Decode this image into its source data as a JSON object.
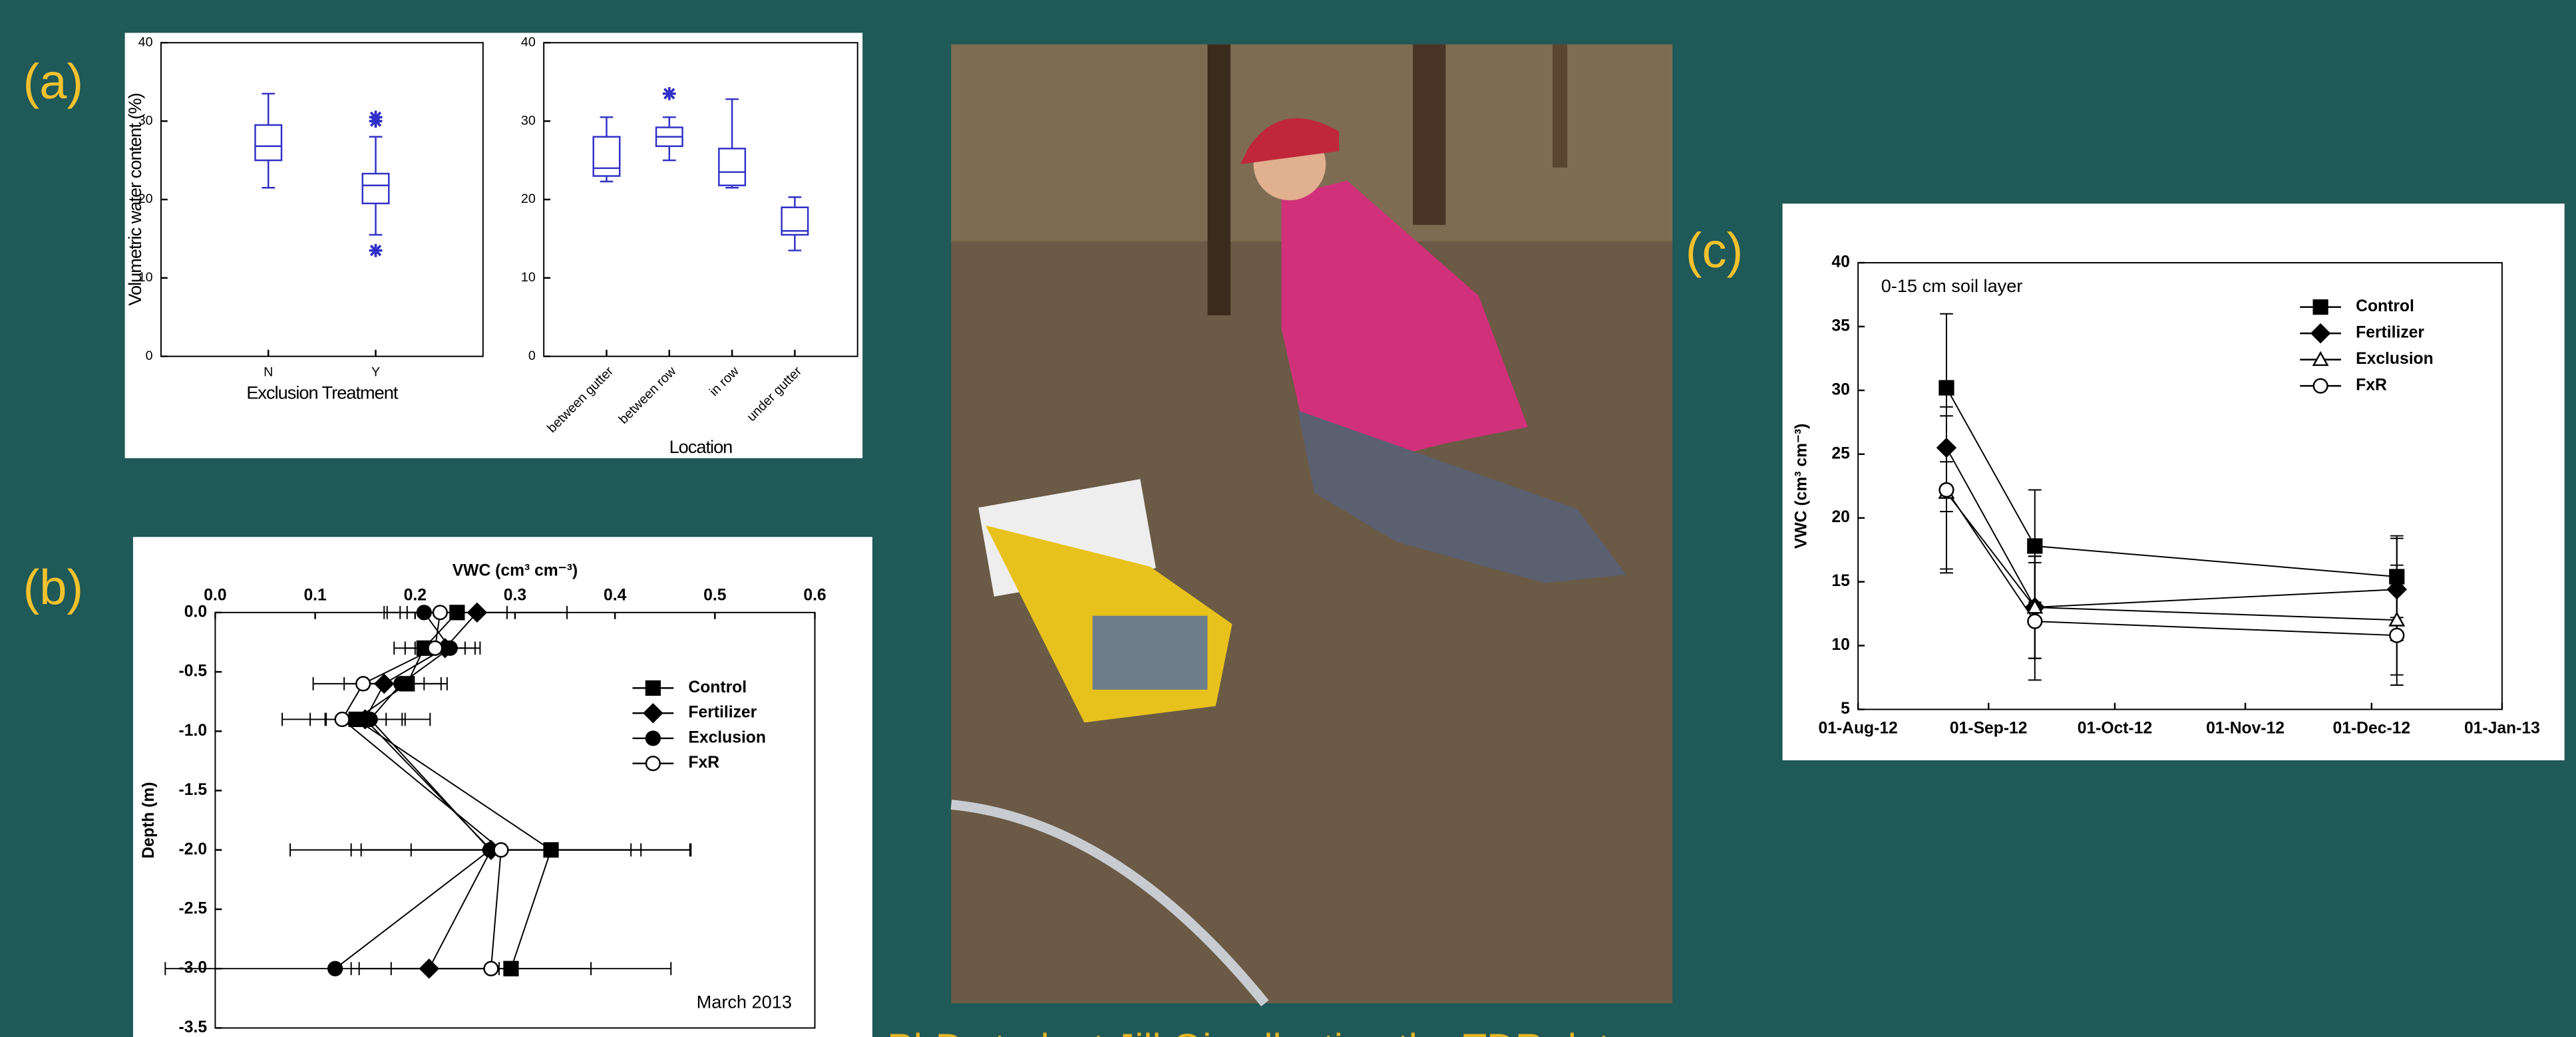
{
  "panel_labels": [
    "(a)",
    "(b)",
    "(c)"
  ],
  "caption": "PhD student Jill Qi collecting the TDR data",
  "chart_data": [
    {
      "type": "box",
      "ylabel": "Volumetric water content (%)",
      "xlabel": "Exclusion Treatment",
      "color": "#3030c8",
      "categories": [
        "N",
        "Y"
      ],
      "ylim": [
        0,
        40
      ],
      "yticks": [
        0,
        10,
        20,
        30,
        40
      ],
      "whisker_low": [
        21.5,
        15.5
      ],
      "q1": [
        25,
        19.5
      ],
      "median": [
        26.8,
        21.8
      ],
      "q3": [
        29.5,
        23.3
      ],
      "whisker_high": [
        33.5,
        28
      ],
      "outliers": [
        [],
        [
          30.5,
          30,
          13.5
        ]
      ]
    },
    {
      "type": "box",
      "xlabel": "Location",
      "color": "#3030c8",
      "categories": [
        "between gutter",
        "between row",
        "in row",
        "under gutter"
      ],
      "ylim": [
        0,
        40
      ],
      "yticks": [
        0,
        10,
        20,
        30,
        40
      ],
      "whisker_low": [
        22.3,
        25,
        21.5,
        13.5
      ],
      "q1": [
        23,
        26.8,
        21.8,
        15.5
      ],
      "median": [
        24,
        28,
        23.5,
        16
      ],
      "q3": [
        28,
        29.2,
        26.5,
        19
      ],
      "whisker_high": [
        30.5,
        30.5,
        32.8,
        20.3
      ],
      "outliers": [
        [],
        [
          33.5
        ],
        [],
        []
      ]
    },
    {
      "type": "profile",
      "xlabel": "VWC (cm³ cm⁻³)",
      "ylabel": "Depth (m)",
      "annotation": "March 2013",
      "xlim": [
        0,
        0.6
      ],
      "xticks": [
        {
          "value": 0,
          "label": "0.0"
        },
        0.1,
        0.2,
        0.3,
        0.4,
        0.5,
        0.6
      ],
      "ylim": [
        -3.5,
        0
      ],
      "yticks": [
        {
          "value": 0,
          "label": "0.0"
        },
        -0.5,
        {
          "value": -1,
          "label": "-1.0"
        },
        -1.5,
        {
          "value": -2,
          "label": "-2.0"
        },
        -2.5,
        {
          "value": -3,
          "label": "-3.0"
        },
        -3.5
      ],
      "depths": [
        0,
        -0.3,
        -0.6,
        -0.9,
        -2,
        -3
      ],
      "series": [
        {
          "name": "Control",
          "color": "#000000",
          "marker": "square",
          "values": [
            0.242,
            0.209,
            0.192,
            0.141,
            0.336,
            0.296
          ],
          "errors": [
            0.05,
            0.03,
            0.04,
            0.03,
            0.14,
            0.16
          ]
        },
        {
          "name": "Fertilizer",
          "color": "#000000",
          "marker": "diamond",
          "values": [
            0.262,
            0.23,
            0.169,
            0.15,
            0.276,
            0.214
          ],
          "errors": [
            0.09,
            0.03,
            0.04,
            0.04,
            0.14,
            0.07
          ]
        },
        {
          "name": "Exclusion",
          "color": "#000000",
          "marker": "circle",
          "values": [
            0.209,
            0.235,
            0.186,
            0.155,
            0.275,
            0.12
          ],
          "errors": [
            0.04,
            0.03,
            0.04,
            0.06,
            0.2,
            0.17
          ]
        },
        {
          "name": "FxR",
          "color": "#000000",
          "marker": "circle-open",
          "values": [
            0.225,
            0.22,
            0.148,
            0.127,
            0.286,
            0.276
          ],
          "errors": [
            0.04,
            0.03,
            0.05,
            0.06,
            0.14,
            0.1
          ]
        }
      ]
    },
    {
      "type": "line",
      "ylabel": "VWC (cm³ cm⁻³)",
      "annotation": "0-15 cm soil layer",
      "x": [
        "2012-08-22",
        "2012-09-12",
        "2012-12-07"
      ],
      "xlim": [
        "2012-08-01",
        "2013-01-01"
      ],
      "xticks": [
        {
          "value": "2012-08-01",
          "label": "01-Aug-12"
        },
        {
          "value": "2012-09-01",
          "label": "01-Sep-12"
        },
        {
          "value": "2012-10-01",
          "label": "01-Oct-12"
        },
        {
          "value": "2012-11-01",
          "label": "01-Nov-12"
        },
        {
          "value": "2012-12-01",
          "label": "01-Dec-12"
        },
        {
          "value": "2013-01-01",
          "label": "01-Jan-13"
        }
      ],
      "ylim": [
        5,
        40
      ],
      "yticks": [
        5,
        10,
        15,
        20,
        25,
        30,
        35,
        40
      ],
      "series": [
        {
          "name": "Control",
          "color": "#000000",
          "marker": "square",
          "values": [
            30.2,
            17.8,
            15.4
          ],
          "errors": [
            5.8,
            4.4,
            3.2
          ]
        },
        {
          "name": "Fertilizer",
          "color": "#000000",
          "marker": "diamond",
          "values": [
            25.5,
            13,
            14.4
          ],
          "errors": [
            5,
            4,
            4
          ]
        },
        {
          "name": "Exclusion",
          "color": "#000000",
          "marker": "triangle-open",
          "values": [
            22,
            13,
            12
          ],
          "errors": [
            6,
            4,
            4.3
          ]
        },
        {
          "name": "FxR",
          "color": "#000000",
          "marker": "circle-open",
          "values": [
            22.2,
            11.9,
            10.8
          ],
          "errors": [
            6.5,
            4.6,
            3.9
          ]
        }
      ]
    }
  ]
}
